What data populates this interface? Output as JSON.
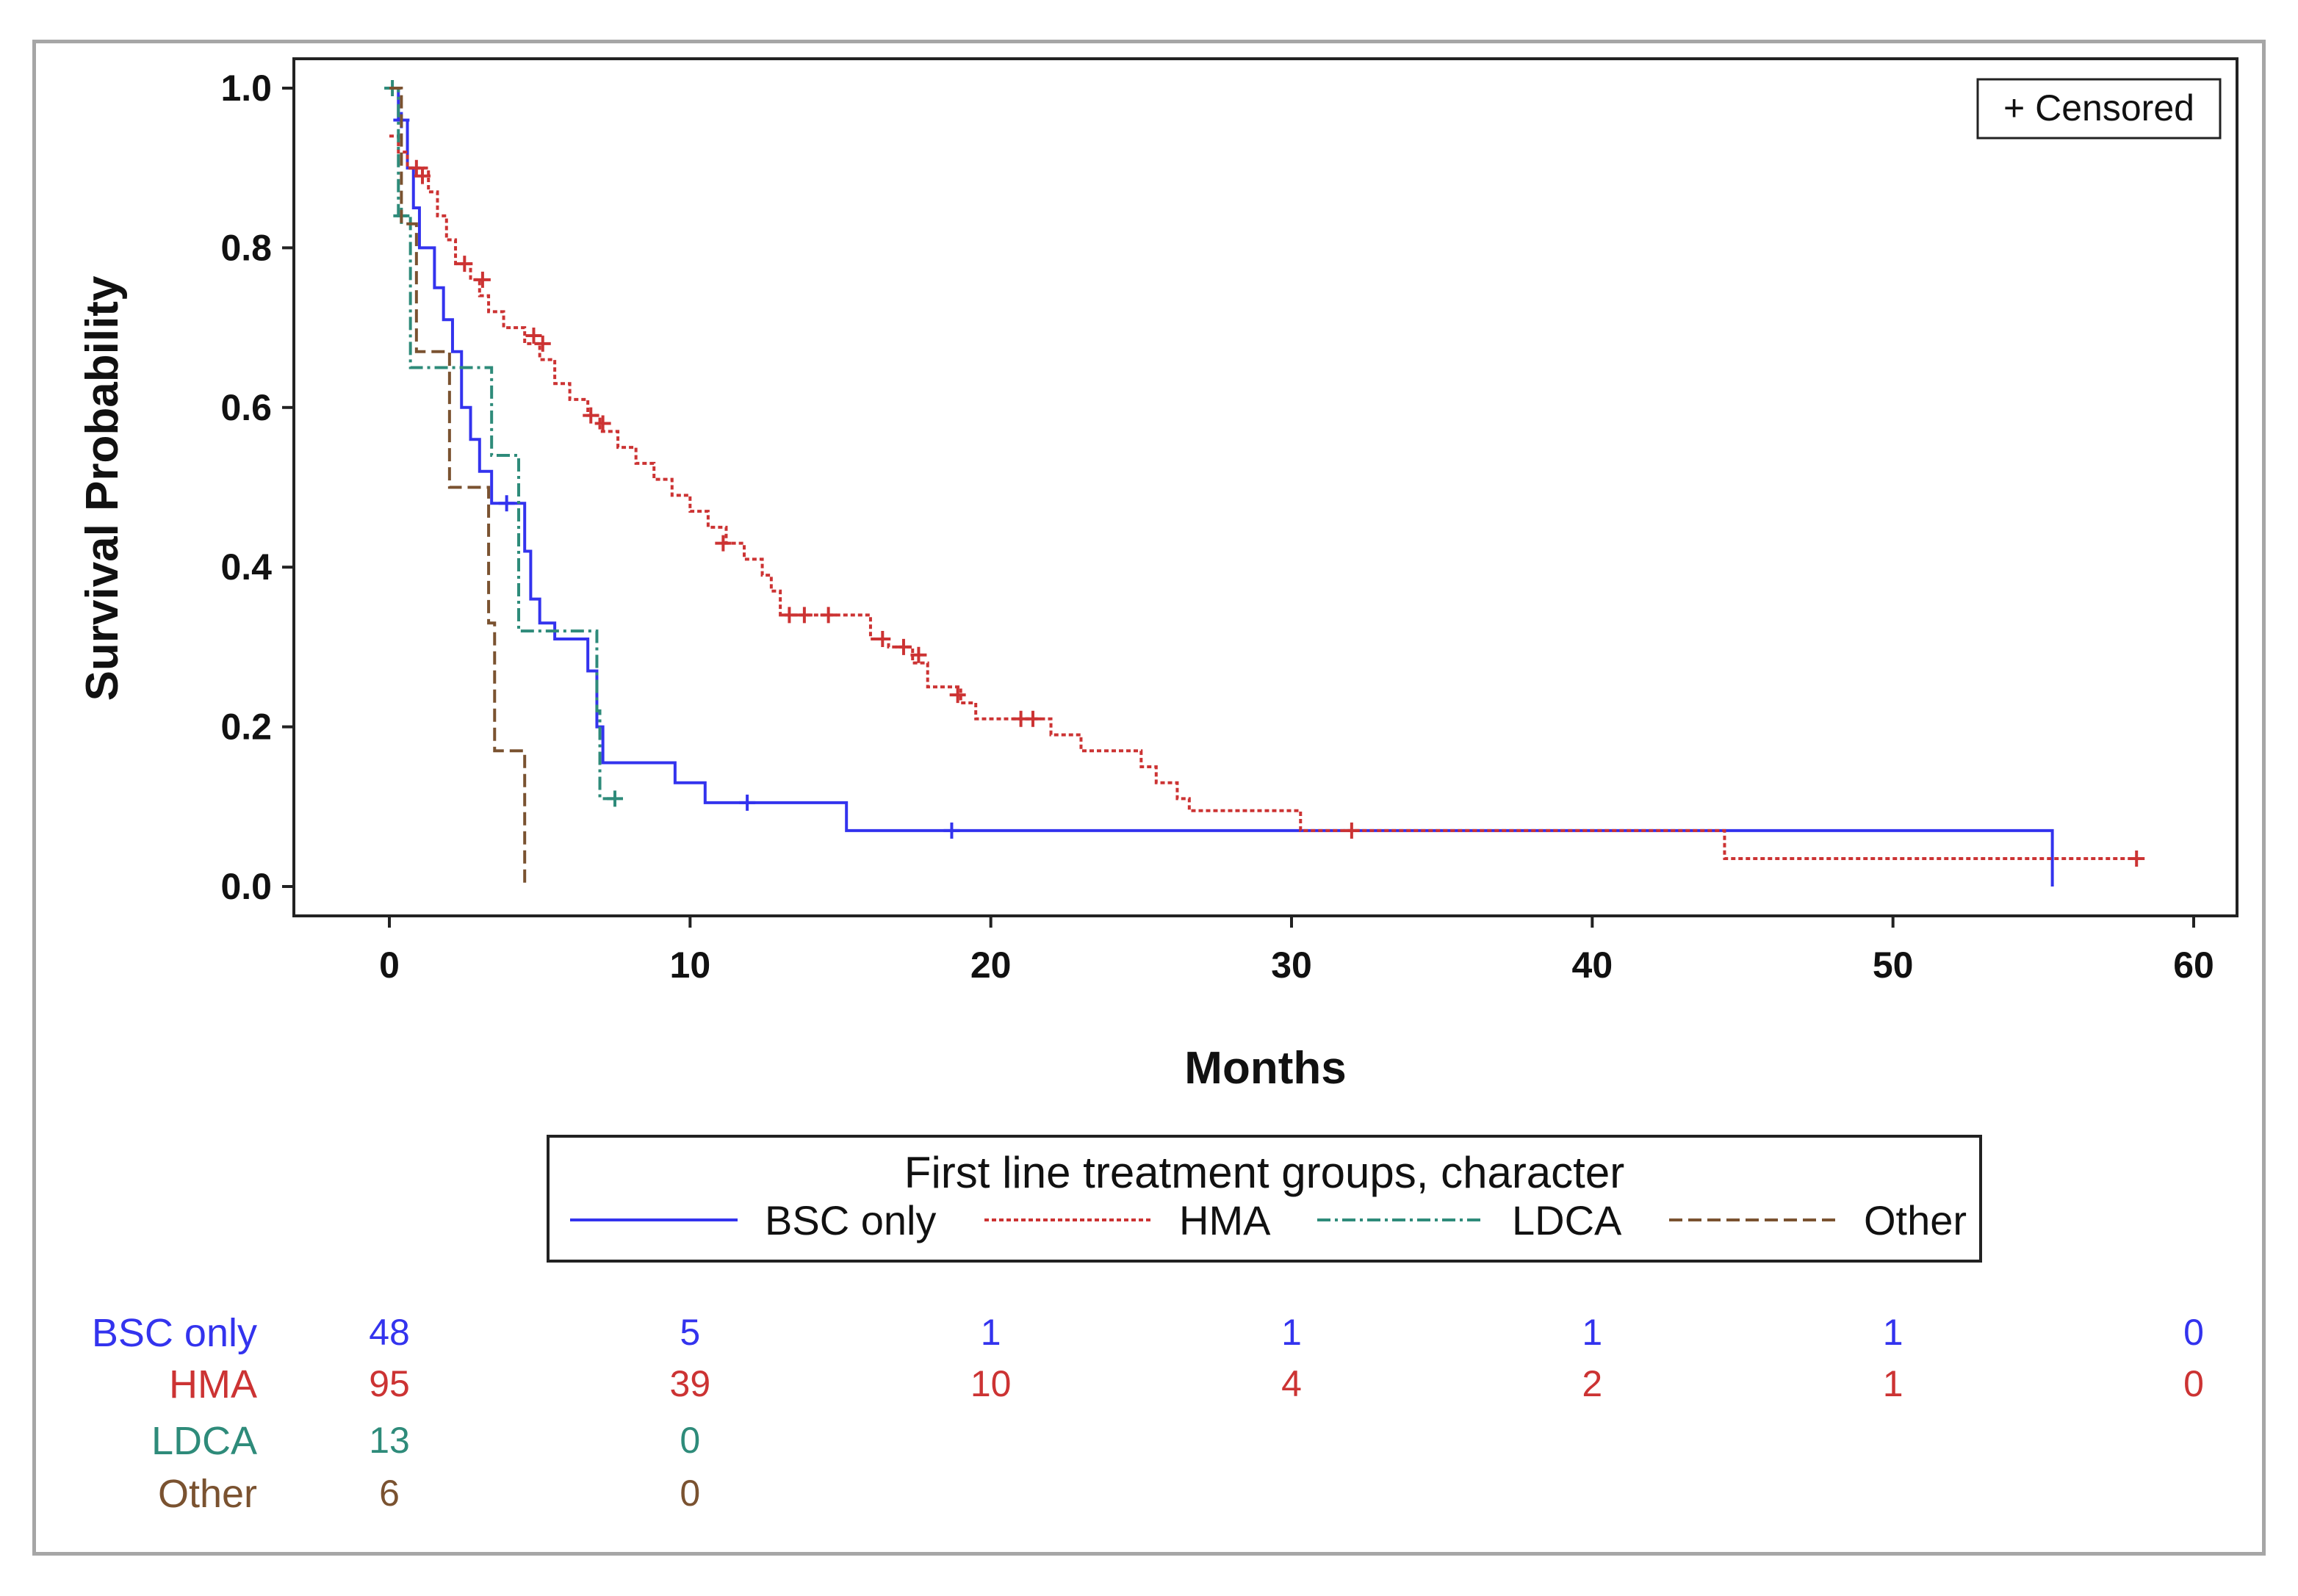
{
  "chart_data": {
    "type": "line",
    "subtype": "kaplan-meier",
    "xlabel": "Months",
    "ylabel": "Survival Probability",
    "xlim": [
      -3,
      60.5
    ],
    "ylim": [
      -0.035,
      1.04
    ],
    "xticks": [
      "0",
      "10",
      "20",
      "30",
      "40",
      "50",
      "60"
    ],
    "yticks": [
      "0.0",
      "0.2",
      "0.4",
      "0.6",
      "0.8",
      "1.0"
    ],
    "censored_label": "+ Censored",
    "legend": {
      "title": "First line treatment groups, character",
      "placement": "bottom"
    },
    "series": [
      {
        "name": "BSC only",
        "color": "#3333ee",
        "style": "solid",
        "steps": [
          [
            0,
            1.0
          ],
          [
            0.3,
            0.96
          ],
          [
            0.6,
            0.9
          ],
          [
            0.8,
            0.85
          ],
          [
            1.0,
            0.8
          ],
          [
            1.5,
            0.75
          ],
          [
            1.8,
            0.71
          ],
          [
            2.1,
            0.67
          ],
          [
            2.4,
            0.6
          ],
          [
            2.7,
            0.56
          ],
          [
            3.0,
            0.52
          ],
          [
            3.4,
            0.48
          ],
          [
            4.5,
            0.42
          ],
          [
            4.7,
            0.36
          ],
          [
            5.0,
            0.33
          ],
          [
            5.5,
            0.31
          ],
          [
            6.6,
            0.27
          ],
          [
            6.9,
            0.2
          ],
          [
            7.1,
            0.155
          ],
          [
            9.5,
            0.13
          ],
          [
            10.5,
            0.105
          ],
          [
            15.2,
            0.07
          ],
          [
            55.3,
            0.0
          ]
        ],
        "censored": [
          [
            0.4,
            0.96
          ],
          [
            3.9,
            0.48
          ],
          [
            11.9,
            0.105
          ],
          [
            18.7,
            0.07
          ]
        ]
      },
      {
        "name": "HMA",
        "color": "#cc3333",
        "style": "dotted",
        "steps": [
          [
            0,
            0.94
          ],
          [
            0.3,
            0.92
          ],
          [
            0.6,
            0.9
          ],
          [
            1.3,
            0.87
          ],
          [
            1.6,
            0.84
          ],
          [
            1.9,
            0.81
          ],
          [
            2.2,
            0.78
          ],
          [
            2.7,
            0.76
          ],
          [
            3.0,
            0.74
          ],
          [
            3.3,
            0.72
          ],
          [
            3.8,
            0.7
          ],
          [
            4.5,
            0.68
          ],
          [
            5.0,
            0.66
          ],
          [
            5.5,
            0.63
          ],
          [
            6.0,
            0.61
          ],
          [
            6.6,
            0.59
          ],
          [
            7.0,
            0.57
          ],
          [
            7.6,
            0.55
          ],
          [
            8.2,
            0.53
          ],
          [
            8.8,
            0.51
          ],
          [
            9.4,
            0.49
          ],
          [
            10.0,
            0.47
          ],
          [
            10.6,
            0.45
          ],
          [
            11.2,
            0.43
          ],
          [
            11.8,
            0.41
          ],
          [
            12.4,
            0.39
          ],
          [
            12.7,
            0.37
          ],
          [
            13.0,
            0.34
          ],
          [
            16.0,
            0.31
          ],
          [
            16.6,
            0.3
          ],
          [
            17.4,
            0.28
          ],
          [
            17.9,
            0.25
          ],
          [
            19.0,
            0.23
          ],
          [
            19.5,
            0.21
          ],
          [
            22.0,
            0.19
          ],
          [
            23.0,
            0.17
          ],
          [
            25.0,
            0.15
          ],
          [
            25.5,
            0.13
          ],
          [
            26.2,
            0.11
          ],
          [
            26.6,
            0.095
          ],
          [
            30.3,
            0.07
          ],
          [
            44.4,
            0.035
          ]
        ],
        "censored": [
          [
            0.9,
            0.9
          ],
          [
            1.1,
            0.89
          ],
          [
            2.5,
            0.78
          ],
          [
            3.1,
            0.76
          ],
          [
            4.8,
            0.69
          ],
          [
            5.1,
            0.68
          ],
          [
            6.7,
            0.59
          ],
          [
            7.1,
            0.58
          ],
          [
            11.1,
            0.43
          ],
          [
            13.3,
            0.34
          ],
          [
            13.8,
            0.34
          ],
          [
            14.6,
            0.34
          ],
          [
            16.4,
            0.31
          ],
          [
            17.1,
            0.3
          ],
          [
            17.6,
            0.29
          ],
          [
            18.9,
            0.24
          ],
          [
            21.0,
            0.21
          ],
          [
            21.4,
            0.21
          ],
          [
            32.0,
            0.07
          ],
          [
            58.1,
            0.035
          ]
        ],
        "end": 58.1
      },
      {
        "name": "LDCA",
        "color": "#2e8b7a",
        "style": "dashdot",
        "steps": [
          [
            0,
            1.0
          ],
          [
            0.3,
            0.84
          ],
          [
            0.7,
            0.65
          ],
          [
            3.4,
            0.54
          ],
          [
            4.3,
            0.32
          ],
          [
            6.9,
            0.22
          ],
          [
            7.0,
            0.11
          ]
        ],
        "censored": [
          [
            0.1,
            1.0
          ],
          [
            0.4,
            0.84
          ],
          [
            7.5,
            0.11
          ]
        ],
        "end": 7.5
      },
      {
        "name": "Other",
        "color": "#7a5230",
        "style": "dashed",
        "steps": [
          [
            0,
            1.0
          ],
          [
            0.4,
            0.83
          ],
          [
            0.9,
            0.67
          ],
          [
            2.0,
            0.5
          ],
          [
            3.3,
            0.33
          ],
          [
            3.5,
            0.17
          ],
          [
            4.5,
            0.0
          ]
        ],
        "censored": [],
        "end": 4.5
      }
    ],
    "risk_table": {
      "times": [
        0,
        10,
        20,
        30,
        40,
        50,
        60
      ],
      "rows": [
        {
          "label": "BSC only",
          "color": "#3333ee",
          "values": [
            "48",
            "5",
            "1",
            "1",
            "1",
            "1",
            "0"
          ]
        },
        {
          "label": "HMA",
          "color": "#cc3333",
          "values": [
            "95",
            "39",
            "10",
            "4",
            "2",
            "1",
            "0"
          ]
        },
        {
          "label": "LDCA",
          "color": "#2e8b7a",
          "values": [
            "13",
            "0"
          ]
        },
        {
          "label": "Other",
          "color": "#7a5230",
          "values": [
            "6",
            "0"
          ]
        }
      ]
    }
  }
}
